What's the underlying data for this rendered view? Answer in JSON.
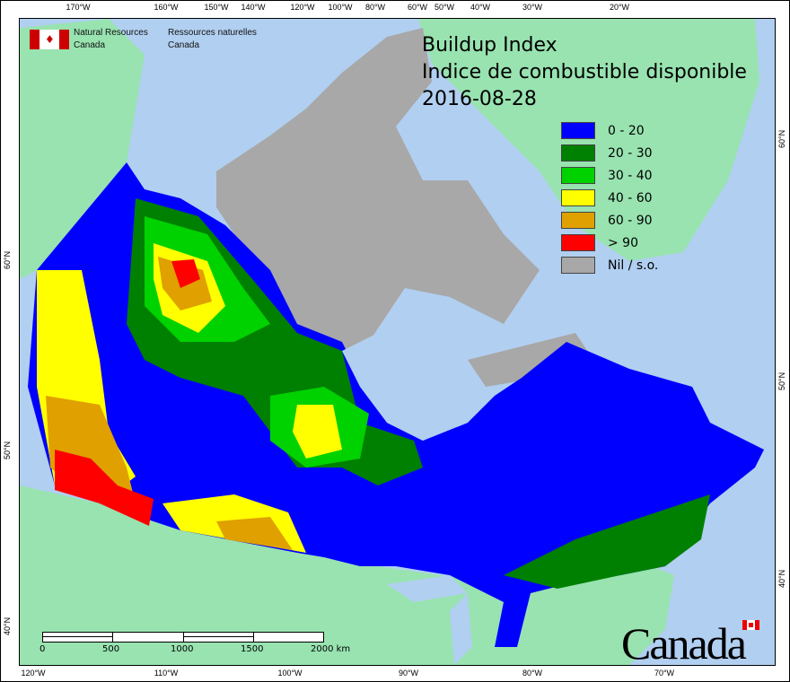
{
  "agency": {
    "en_line1": "Natural Resources",
    "en_line2": "Canada",
    "fr_line1": "Ressources naturelles",
    "fr_line2": "Canada",
    "flag_icon": "canada-flag-icon"
  },
  "title": {
    "line1": "Buildup Index",
    "line2": "Indice de combustible disponible",
    "date": "2016-08-28"
  },
  "legend": [
    {
      "label": "0 - 20",
      "color": "#0000ff"
    },
    {
      "label": "20 - 30",
      "color": "#008000"
    },
    {
      "label": "30 - 40",
      "color": "#00d200"
    },
    {
      "label": "40 - 60",
      "color": "#ffff00"
    },
    {
      "label": "60 - 90",
      "color": "#e0a000"
    },
    {
      "label": "> 90",
      "color": "#ff0000"
    },
    {
      "label": "Nil / s.o.",
      "color": "#a8a8a8"
    }
  ],
  "top_ticks": [
    "170°W",
    "160°W",
    "150°W",
    "140°W",
    "120°W",
    "100°W",
    "80°W",
    "60°W",
    "50°W",
    "40°W",
    "30°W",
    "20°W"
  ],
  "bottom_ticks": [
    "120°W",
    "110°W",
    "100°W",
    "90°W",
    "80°W",
    "70°W"
  ],
  "left_ticks": [
    "60°N",
    "50°N",
    "40°N"
  ],
  "right_ticks": [
    "60°N",
    "50°N",
    "40°N"
  ],
  "scalebar": {
    "labels": [
      "0",
      "500",
      "1000",
      "1500",
      "2000 km"
    ]
  },
  "wordmark": "Canada",
  "colors": {
    "ocean": "#b1cff0",
    "land": "#98e3b0",
    "nodata": "#a8a8a8"
  }
}
